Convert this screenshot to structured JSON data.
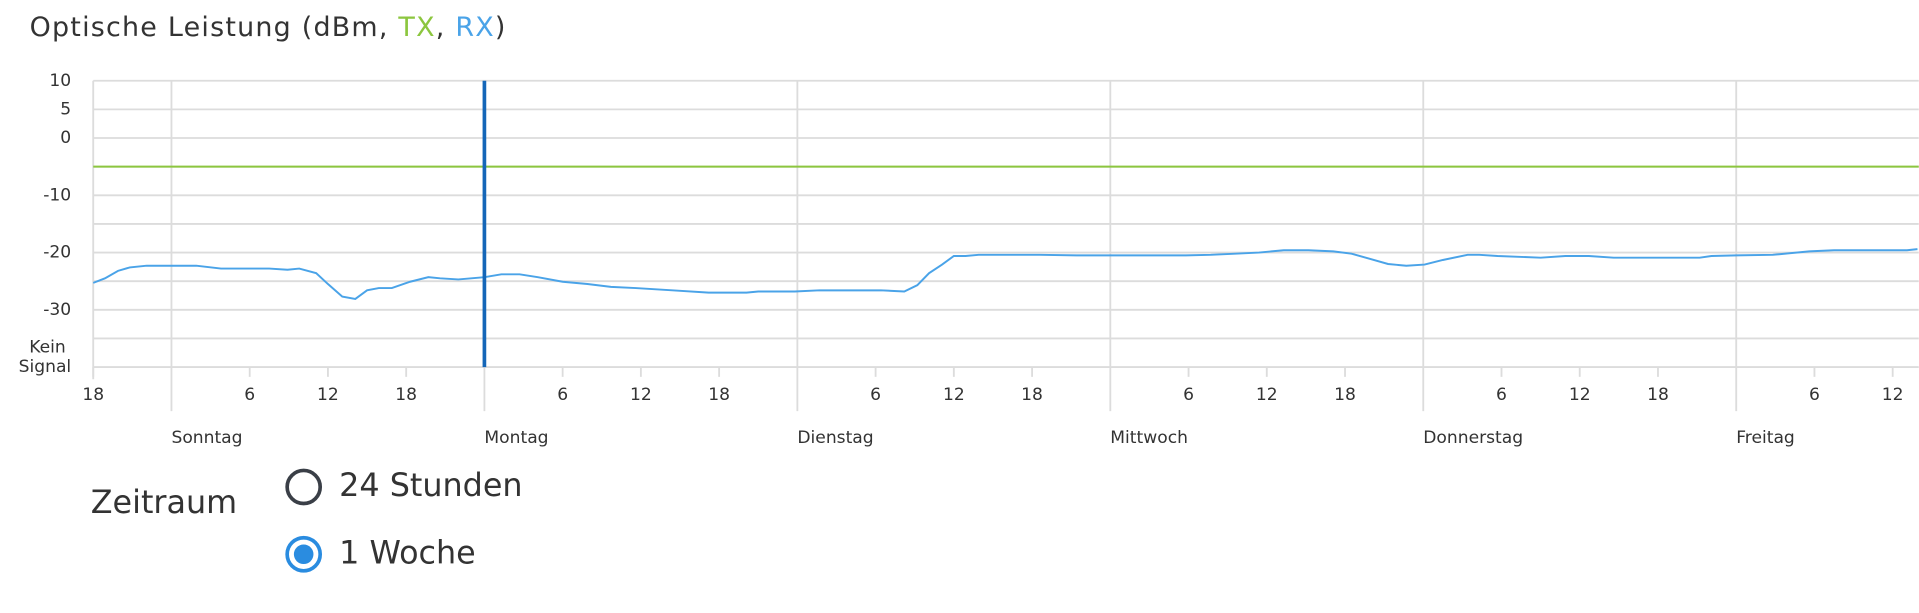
{
  "chart_data": {
    "type": "line",
    "title": {
      "before": "Optische Leistung (dBm, ",
      "between": ", ",
      "after": ")"
    },
    "series": [
      {
        "name": "TX",
        "color": "#8cc63f",
        "x": [
          0,
          140
        ],
        "values": [
          -5,
          -5
        ]
      },
      {
        "name": "RX",
        "color": "#4aa3e8",
        "x": [
          0,
          0.9,
          1.9,
          2.8,
          4.1,
          6,
          7.9,
          9.8,
          11.6,
          13.5,
          14.9,
          15.8,
          17.1,
          18,
          19.1,
          20.1,
          21,
          21.9,
          22.9,
          24.3,
          25.7,
          26.6,
          28,
          29,
          30,
          31.3,
          32.7,
          34.1,
          36,
          37.9,
          39.7,
          41.6,
          44.4,
          47.2,
          50.1,
          51,
          53.8,
          55.7,
          58.5,
          60.4,
          62.2,
          63.2,
          64.1,
          65.1,
          66,
          66.9,
          67.9,
          70.7,
          72.6,
          75.4,
          78.2,
          83.8,
          85.7,
          87.6,
          89.4,
          91.3,
          93.2,
          95.1,
          96.5,
          97.9,
          99.3,
          100.7,
          102.1,
          103.5,
          105.4,
          106.3,
          107.7,
          111,
          112.9,
          114.7,
          116.6,
          120.4,
          123.2,
          124.1,
          126,
          128.8,
          131.6,
          133.5,
          136.3,
          139.1,
          139.9
        ],
        "values": [
          -25.3,
          -24.5,
          -23.2,
          -22.6,
          -22.3,
          -22.3,
          -22.3,
          -22.8,
          -22.8,
          -22.8,
          -23.0,
          -22.8,
          -23.6,
          -25.5,
          -27.7,
          -28.1,
          -26.6,
          -26.2,
          -26.2,
          -25.1,
          -24.3,
          -24.5,
          -24.7,
          -24.5,
          -24.3,
          -23.8,
          -23.8,
          -24.3,
          -25.1,
          -25.5,
          -26.0,
          -26.2,
          -26.6,
          -27.0,
          -27.0,
          -26.8,
          -26.8,
          -26.6,
          -26.6,
          -26.6,
          -26.8,
          -25.7,
          -23.6,
          -22.1,
          -20.6,
          -20.6,
          -20.4,
          -20.4,
          -20.4,
          -20.5,
          -20.5,
          -20.5,
          -20.4,
          -20.2,
          -20.0,
          -19.6,
          -19.6,
          -19.8,
          -20.2,
          -21.1,
          -22.0,
          -22.3,
          -22.1,
          -21.3,
          -20.4,
          -20.4,
          -20.6,
          -20.9,
          -20.6,
          -20.6,
          -20.9,
          -20.9,
          -20.9,
          -20.6,
          -20.5,
          -20.4,
          -19.8,
          -19.6,
          -19.6,
          -19.6,
          -19.4
        ]
      }
    ],
    "xlim": [
      0,
      140
    ],
    "xticks": [
      {
        "value": 0,
        "label": "18"
      },
      {
        "value": 12,
        "label": "6"
      },
      {
        "value": 18,
        "label": "12"
      },
      {
        "value": 24,
        "label": "18"
      },
      {
        "value": 36,
        "label": "6"
      },
      {
        "value": 42,
        "label": "12"
      },
      {
        "value": 48,
        "label": "18"
      },
      {
        "value": 60,
        "label": "6"
      },
      {
        "value": 66,
        "label": "12"
      },
      {
        "value": 72,
        "label": "18"
      },
      {
        "value": 84,
        "label": "6"
      },
      {
        "value": 90,
        "label": "12"
      },
      {
        "value": 96,
        "label": "18"
      },
      {
        "value": 108,
        "label": "6"
      },
      {
        "value": 114,
        "label": "12"
      },
      {
        "value": 120,
        "label": "18"
      },
      {
        "value": 132,
        "label": "6"
      },
      {
        "value": 138,
        "label": "12"
      }
    ],
    "day_labels": [
      {
        "value": 6,
        "label": "Sonntag"
      },
      {
        "value": 30,
        "label": "Montag"
      },
      {
        "value": 54,
        "label": "Dienstag"
      },
      {
        "value": 78,
        "label": "Mittwoch"
      },
      {
        "value": 102,
        "label": "Donnerstag"
      },
      {
        "value": 126,
        "label": "Freitag"
      }
    ],
    "cursor": 30,
    "ylim": [
      -40,
      10
    ],
    "yticks": [
      10,
      5,
      0,
      -10,
      -20,
      -30,
      {
        "value": -40,
        "label": "Kein Signal"
      }
    ],
    "yminor": [
      -5,
      -15,
      -25,
      -35
    ],
    "grid": true
  },
  "form": {
    "label": "Zeitraum",
    "options": [
      {
        "label": "24 Stunden",
        "selected": false
      },
      {
        "label": "1 Woche",
        "selected": true
      }
    ]
  }
}
